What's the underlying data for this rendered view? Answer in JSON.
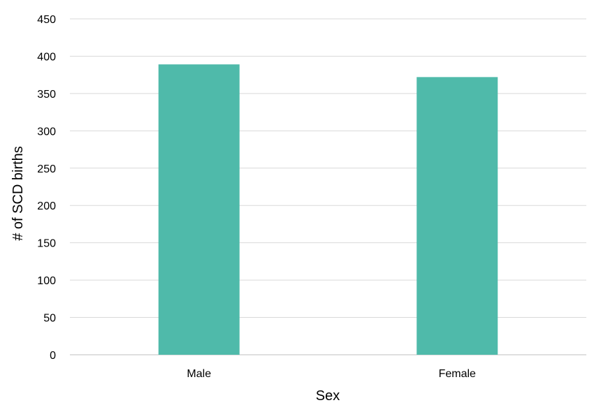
{
  "chart_data": {
    "type": "bar",
    "title": "",
    "xlabel": "Sex",
    "ylabel": "# of SCD births",
    "categories": [
      "Male",
      "Female"
    ],
    "values": [
      389,
      372
    ],
    "ylim": [
      0,
      450
    ],
    "yticks": [
      0,
      50,
      100,
      150,
      200,
      250,
      300,
      350,
      400,
      450
    ],
    "grid": "horizontal",
    "legend": "none",
    "bar_color": "#4FBAAA"
  }
}
